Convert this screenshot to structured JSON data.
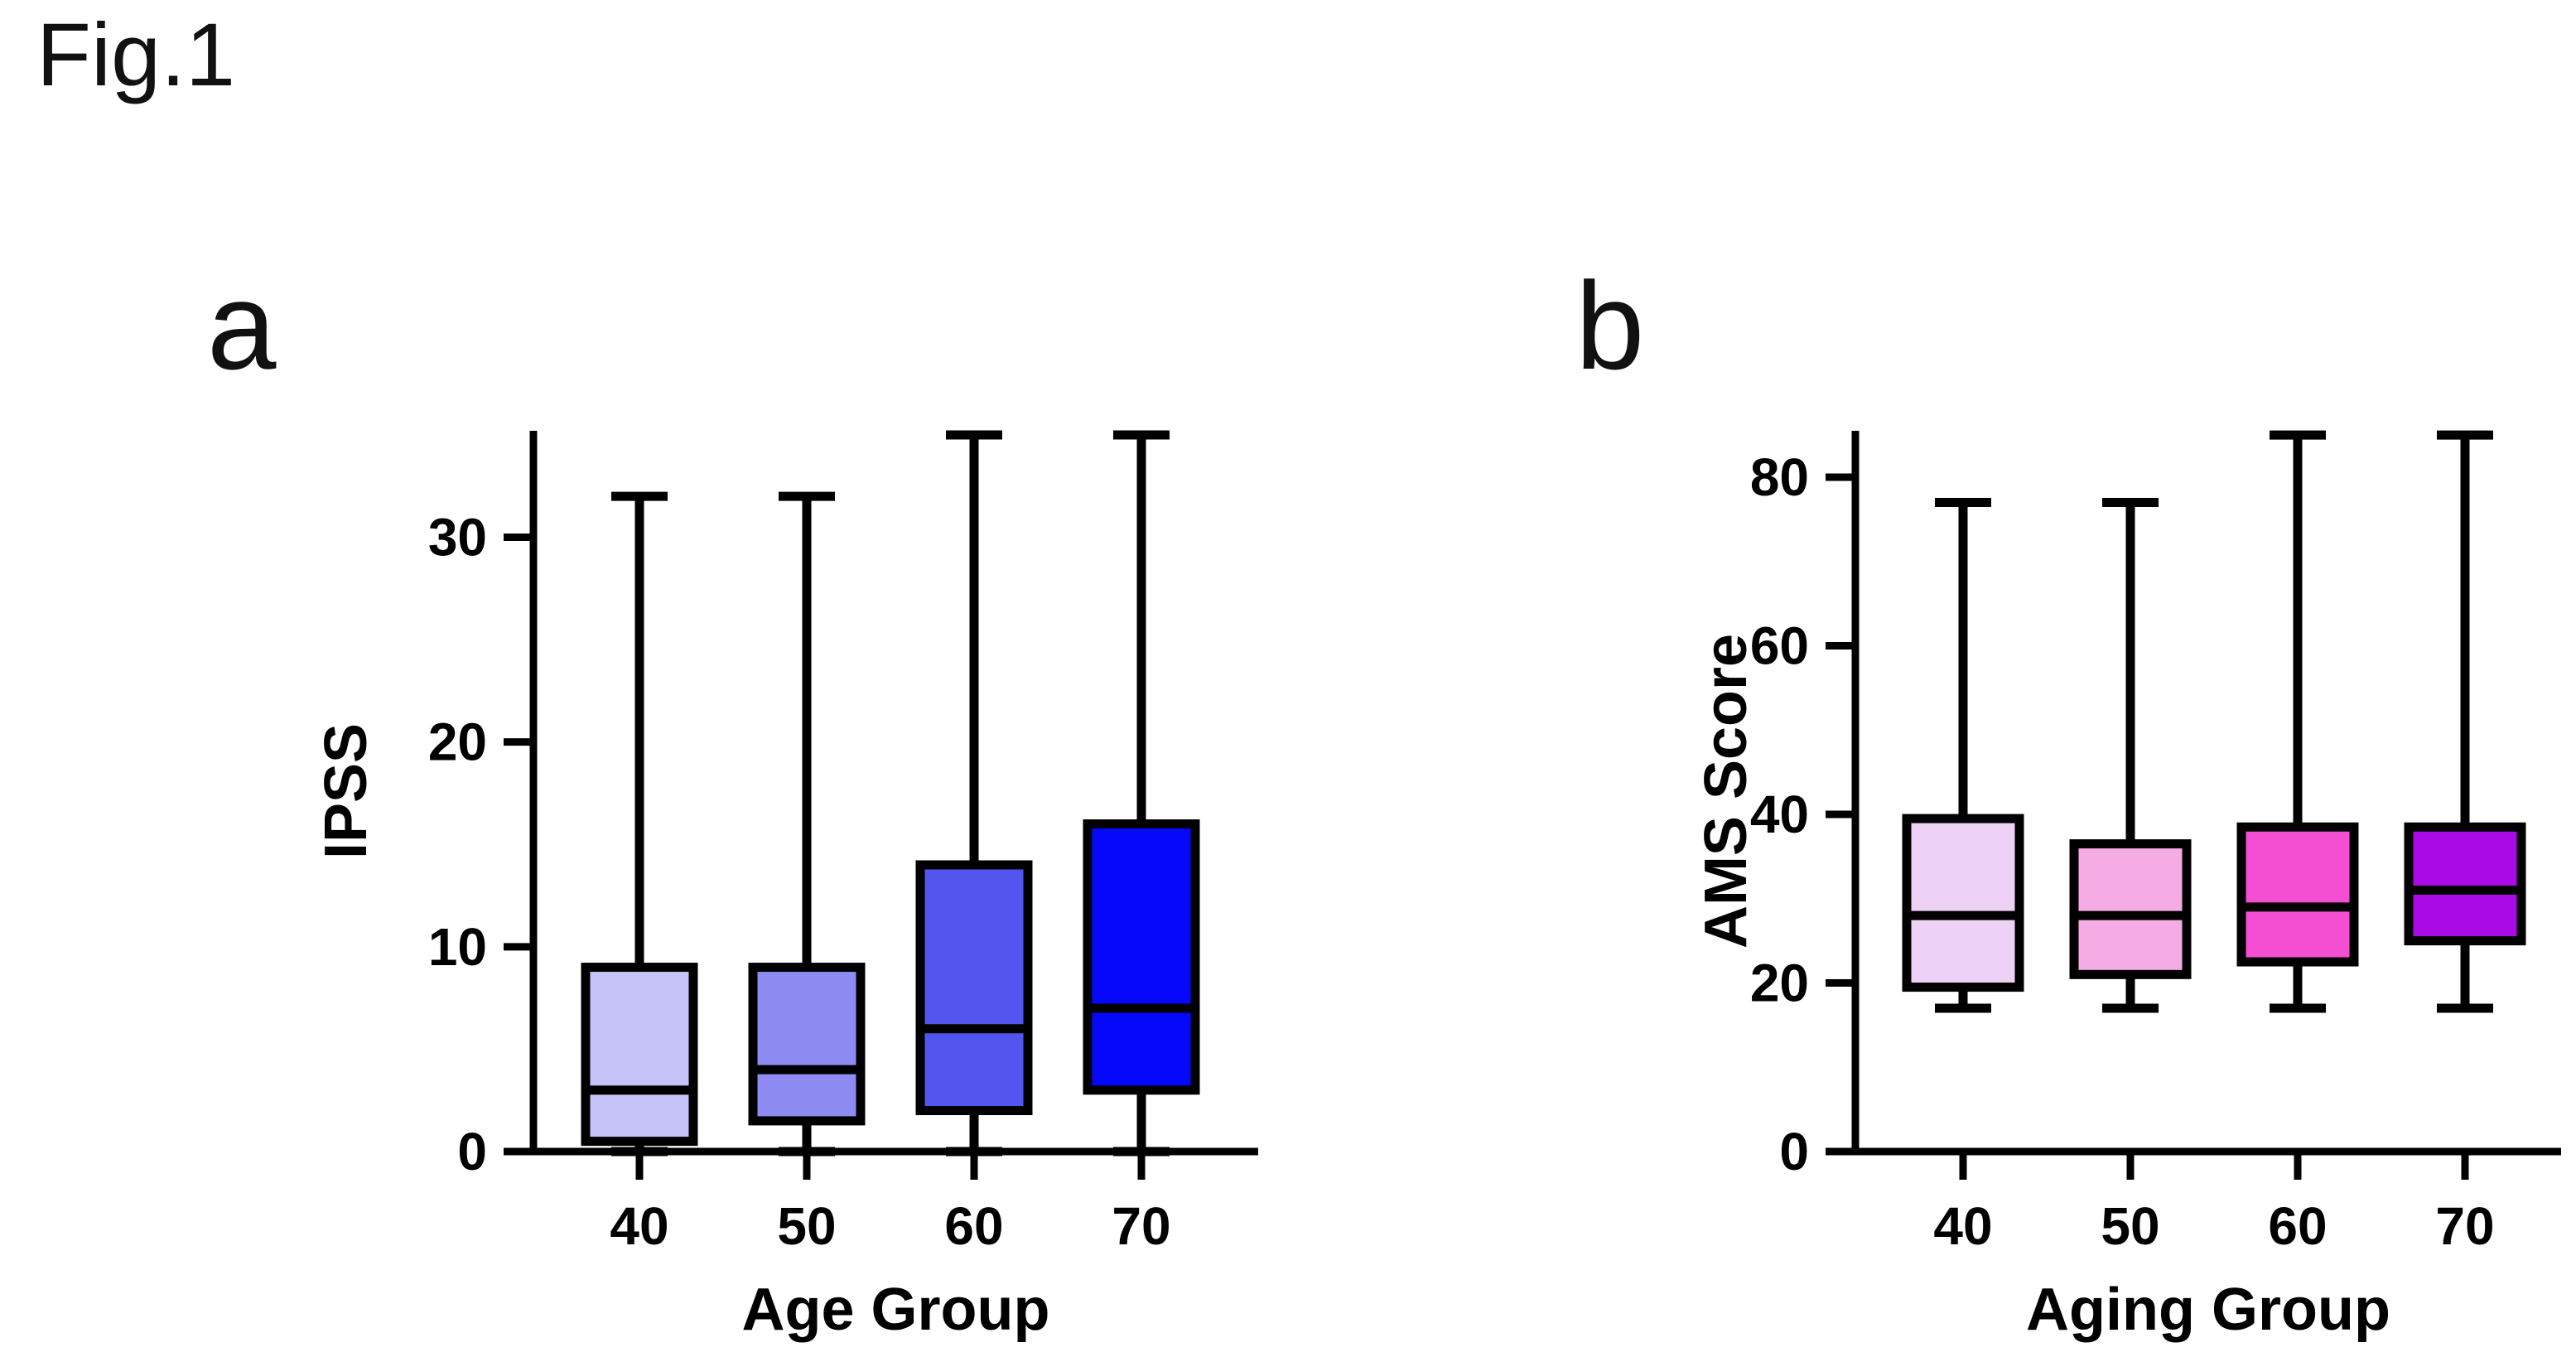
{
  "figure": {
    "label": "Fig.1"
  },
  "ink_color": "#000000",
  "background_color": "#ffffff",
  "chart_data": [
    {
      "type": "boxplot",
      "panel_label": "a",
      "xlabel": "Age Group",
      "ylabel": "IPSS",
      "categories": [
        "40",
        "50",
        "60",
        "70"
      ],
      "y_ticks": [
        0,
        10,
        20,
        30
      ],
      "ylim": [
        0,
        35.2
      ],
      "grid": false,
      "legend": false,
      "box_fill_colors": [
        "#c6c3f8",
        "#8e8cf2",
        "#5356ee",
        "#0407fa"
      ],
      "series": [
        {
          "category": "40",
          "min": 0,
          "q1": 0.5,
          "median": 3,
          "q3": 9,
          "max": 32
        },
        {
          "category": "50",
          "min": 0,
          "q1": 1.5,
          "median": 4,
          "q3": 9,
          "max": 32
        },
        {
          "category": "60",
          "min": 0,
          "q1": 2,
          "median": 6,
          "q3": 14,
          "max": 35
        },
        {
          "category": "70",
          "min": 0,
          "q1": 3,
          "median": 7,
          "q3": 16,
          "max": 35
        }
      ]
    },
    {
      "type": "boxplot",
      "panel_label": "b",
      "xlabel": "Aging Group",
      "ylabel": "AMS Score",
      "categories": [
        "40",
        "50",
        "60",
        "70"
      ],
      "y_ticks": [
        0,
        20,
        40,
        60,
        80
      ],
      "ylim": [
        0,
        85.5
      ],
      "grid": false,
      "legend": false,
      "box_fill_colors": [
        "#eed2f6",
        "#f5abe4",
        "#f44ed2",
        "#aa0ae6"
      ],
      "series": [
        {
          "category": "40",
          "min": 17,
          "q1": 19.5,
          "median": 28,
          "q3": 39.5,
          "max": 77
        },
        {
          "category": "50",
          "min": 17,
          "q1": 21,
          "median": 28,
          "q3": 36.5,
          "max": 77
        },
        {
          "category": "60",
          "min": 17,
          "q1": 22.5,
          "median": 29,
          "q3": 38.5,
          "max": 85
        },
        {
          "category": "70",
          "min": 17,
          "q1": 25,
          "median": 31,
          "q3": 38.5,
          "max": 85
        }
      ]
    }
  ]
}
